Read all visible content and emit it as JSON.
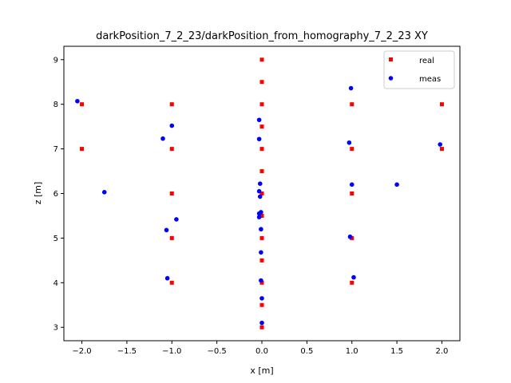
{
  "chart_data": {
    "type": "scatter",
    "title": "darkPosition_7_2_23/darkPosition_from_homography_7_2_23 XY",
    "xlabel": "x [m]",
    "ylabel": "z [m]",
    "xlim": [
      -2.2,
      2.2
    ],
    "ylim": [
      2.7,
      9.3
    ],
    "x_ticks": [
      -2.0,
      -1.5,
      -1.0,
      -0.5,
      0.0,
      0.5,
      1.0,
      1.5,
      2.0
    ],
    "x_tick_labels": [
      "−2.0",
      "−1.5",
      "−1.0",
      "−0.5",
      "0.0",
      "0.5",
      "1.0",
      "1.5",
      "2.0"
    ],
    "y_ticks": [
      3,
      4,
      5,
      6,
      7,
      8,
      9
    ],
    "y_tick_labels": [
      "3",
      "4",
      "5",
      "6",
      "7",
      "8",
      "9"
    ],
    "grid": false,
    "legend_position": "top-right",
    "series": [
      {
        "name": "real",
        "marker": "square",
        "color": "#ff0000",
        "points": [
          [
            -2,
            8
          ],
          [
            -2,
            7
          ],
          [
            -1,
            8
          ],
          [
            -1,
            7
          ],
          [
            -1,
            6
          ],
          [
            -1,
            5
          ],
          [
            -1,
            4
          ],
          [
            0,
            9
          ],
          [
            0,
            8.5
          ],
          [
            0,
            8
          ],
          [
            0,
            7.5
          ],
          [
            0,
            7
          ],
          [
            0,
            6.5
          ],
          [
            0,
            6
          ],
          [
            0,
            5.5
          ],
          [
            0,
            5
          ],
          [
            0,
            4.5
          ],
          [
            0,
            4
          ],
          [
            0,
            3.5
          ],
          [
            0,
            3
          ],
          [
            1,
            8
          ],
          [
            1,
            7
          ],
          [
            1,
            6
          ],
          [
            1,
            5
          ],
          [
            1,
            4
          ],
          [
            2,
            8
          ],
          [
            2,
            7
          ]
        ]
      },
      {
        "name": "meas",
        "marker": "circle",
        "color": "#0000ff",
        "points": [
          [
            -2.05,
            8.07
          ],
          [
            -1.75,
            6.03
          ],
          [
            -1.1,
            7.23
          ],
          [
            -1.0,
            7.52
          ],
          [
            -1.06,
            5.18
          ],
          [
            -0.95,
            5.42
          ],
          [
            -1.05,
            4.1
          ],
          [
            -0.03,
            7.65
          ],
          [
            -0.03,
            7.22
          ],
          [
            -0.02,
            6.22
          ],
          [
            -0.03,
            6.05
          ],
          [
            -0.02,
            5.93
          ],
          [
            -0.01,
            5.58
          ],
          [
            -0.03,
            5.55
          ],
          [
            -0.03,
            5.47
          ],
          [
            -0.01,
            5.2
          ],
          [
            -0.01,
            4.68
          ],
          [
            -0.01,
            4.05
          ],
          [
            0.0,
            3.65
          ],
          [
            0.0,
            3.1
          ],
          [
            0.99,
            8.36
          ],
          [
            0.97,
            7.14
          ],
          [
            1.0,
            6.2
          ],
          [
            0.98,
            5.03
          ],
          [
            1.02,
            4.12
          ],
          [
            1.5,
            6.2
          ],
          [
            1.98,
            7.1
          ]
        ]
      }
    ]
  }
}
